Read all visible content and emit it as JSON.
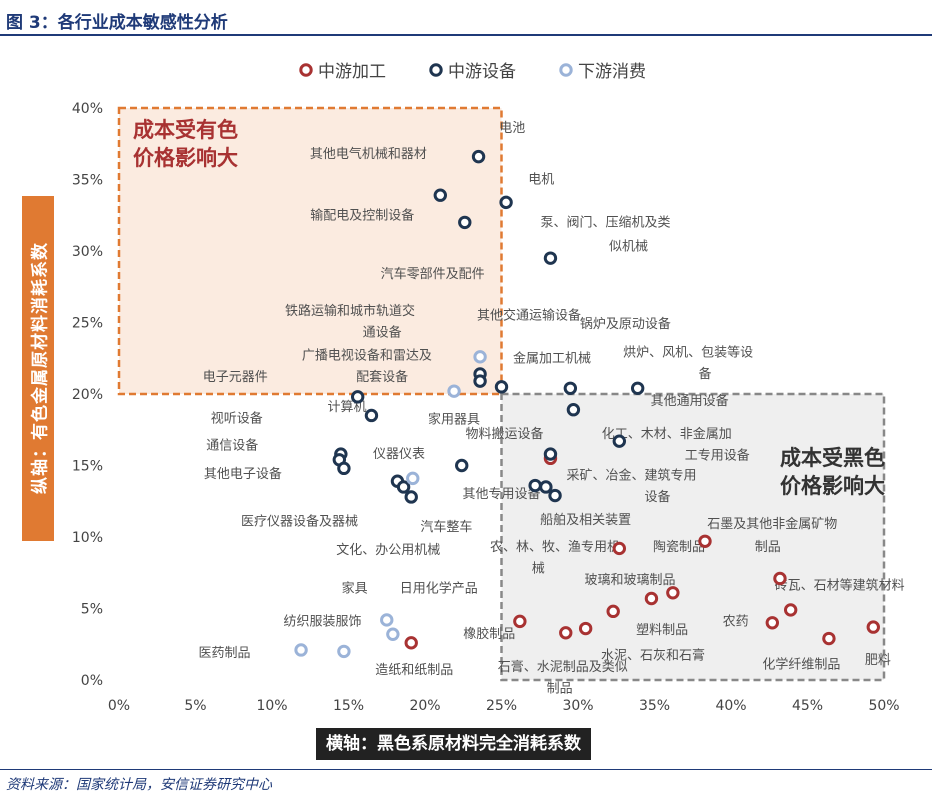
{
  "figure": {
    "title": "图 3：各行业成本敏感性分析",
    "source": "资料来源：国家统计局，安信证券研究中心"
  },
  "chart_data": {
    "type": "scatter",
    "xlabel": "横轴：黑色系原材料完全消耗系数",
    "ylabel": "纵轴：有色金属原材料消耗系数",
    "xlim": [
      0,
      0.5
    ],
    "ylim": [
      0,
      0.4
    ],
    "xticks": [
      "0%",
      "5%",
      "10%",
      "15%",
      "20%",
      "25%",
      "30%",
      "35%",
      "40%",
      "45%",
      "50%"
    ],
    "yticks": [
      "0%",
      "5%",
      "10%",
      "15%",
      "20%",
      "25%",
      "30%",
      "35%",
      "40%"
    ],
    "legend_position": "top",
    "colors": {
      "中游加工": "#a83232",
      "中游设备": "#1f3550",
      "下游消费": "#9bb3d8"
    },
    "regions": [
      {
        "label_lines": [
          "成本受有色",
          "价格影响大"
        ],
        "x": [
          0,
          0.25
        ],
        "y": [
          0.2,
          0.4
        ],
        "color": "#e07a32"
      },
      {
        "label_lines": [
          "成本受黑色",
          "价格影响大"
        ],
        "x": [
          0.25,
          0.5
        ],
        "y": [
          0,
          0.2
        ],
        "color": "#888888"
      }
    ],
    "series": [
      {
        "name": "中游加工",
        "points": [
          {
            "x": 0.282,
            "y": 0.155,
            "label": ""
          },
          {
            "x": 0.327,
            "y": 0.092,
            "label": ""
          },
          {
            "x": 0.383,
            "y": 0.097,
            "label": ""
          },
          {
            "x": 0.323,
            "y": 0.048,
            "label": ""
          },
          {
            "x": 0.348,
            "y": 0.057,
            "label": ""
          },
          {
            "x": 0.362,
            "y": 0.061,
            "label": ""
          },
          {
            "x": 0.262,
            "y": 0.041,
            "label": ""
          },
          {
            "x": 0.292,
            "y": 0.033,
            "label": ""
          },
          {
            "x": 0.305,
            "y": 0.036,
            "label": ""
          },
          {
            "x": 0.191,
            "y": 0.026,
            "label": ""
          },
          {
            "x": 0.432,
            "y": 0.071,
            "label": ""
          },
          {
            "x": 0.439,
            "y": 0.049,
            "label": ""
          },
          {
            "x": 0.427,
            "y": 0.04,
            "label": ""
          },
          {
            "x": 0.464,
            "y": 0.029,
            "label": ""
          },
          {
            "x": 0.493,
            "y": 0.037,
            "label": ""
          }
        ]
      },
      {
        "name": "中游设备",
        "points": [
          {
            "x": 0.235,
            "y": 0.366,
            "label": ""
          },
          {
            "x": 0.21,
            "y": 0.339,
            "label": ""
          },
          {
            "x": 0.226,
            "y": 0.32,
            "label": ""
          },
          {
            "x": 0.253,
            "y": 0.334,
            "label": ""
          },
          {
            "x": 0.282,
            "y": 0.295,
            "label": ""
          },
          {
            "x": 0.236,
            "y": 0.214,
            "label": ""
          },
          {
            "x": 0.236,
            "y": 0.209,
            "label": ""
          },
          {
            "x": 0.25,
            "y": 0.205,
            "label": ""
          },
          {
            "x": 0.295,
            "y": 0.204,
            "label": ""
          },
          {
            "x": 0.339,
            "y": 0.204,
            "label": ""
          },
          {
            "x": 0.156,
            "y": 0.198,
            "label": ""
          },
          {
            "x": 0.165,
            "y": 0.185,
            "label": ""
          },
          {
            "x": 0.297,
            "y": 0.189,
            "label": ""
          },
          {
            "x": 0.327,
            "y": 0.167,
            "label": ""
          },
          {
            "x": 0.282,
            "y": 0.158,
            "label": ""
          },
          {
            "x": 0.145,
            "y": 0.158,
            "label": ""
          },
          {
            "x": 0.144,
            "y": 0.154,
            "label": ""
          },
          {
            "x": 0.147,
            "y": 0.148,
            "label": ""
          },
          {
            "x": 0.224,
            "y": 0.15,
            "label": ""
          },
          {
            "x": 0.182,
            "y": 0.139,
            "label": ""
          },
          {
            "x": 0.186,
            "y": 0.135,
            "label": ""
          },
          {
            "x": 0.191,
            "y": 0.128,
            "label": ""
          },
          {
            "x": 0.272,
            "y": 0.136,
            "label": ""
          },
          {
            "x": 0.279,
            "y": 0.135,
            "label": ""
          },
          {
            "x": 0.285,
            "y": 0.129,
            "label": ""
          }
        ]
      },
      {
        "name": "下游消费",
        "points": [
          {
            "x": 0.236,
            "y": 0.226,
            "label": ""
          },
          {
            "x": 0.219,
            "y": 0.202,
            "label": ""
          },
          {
            "x": 0.192,
            "y": 0.141,
            "label": ""
          },
          {
            "x": 0.175,
            "y": 0.042,
            "label": ""
          },
          {
            "x": 0.179,
            "y": 0.032,
            "label": ""
          },
          {
            "x": 0.119,
            "y": 0.021,
            "label": ""
          },
          {
            "x": 0.147,
            "y": 0.02,
            "label": ""
          }
        ]
      }
    ],
    "annotations": [
      {
        "text": "电池",
        "x": 0.257,
        "y": 0.386
      },
      {
        "text": "其他电气机械和器材",
        "x": 0.163,
        "y": 0.368
      },
      {
        "text": "电机",
        "x": 0.276,
        "y": 0.35
      },
      {
        "text": "输配电及控制设备",
        "x": 0.159,
        "y": 0.325
      },
      {
        "text": "泵、阀门、压缩机及类",
        "x": 0.318,
        "y": 0.32
      },
      {
        "text": "似机械",
        "x": 0.333,
        "y": 0.303
      },
      {
        "text": "汽车零部件及配件",
        "x": 0.205,
        "y": 0.284
      },
      {
        "text": "铁路运输和城市轨道交",
        "x": 0.151,
        "y": 0.258
      },
      {
        "text": "通设备",
        "x": 0.172,
        "y": 0.243
      },
      {
        "text": "其他交通运输设备",
        "x": 0.268,
        "y": 0.255
      },
      {
        "text": "锅炉及原动设备",
        "x": 0.331,
        "y": 0.249
      },
      {
        "text": "广播电视设备和雷达及",
        "x": 0.162,
        "y": 0.227
      },
      {
        "text": "配套设备",
        "x": 0.172,
        "y": 0.212
      },
      {
        "text": "金属加工机械",
        "x": 0.283,
        "y": 0.225
      },
      {
        "text": "烘炉、风机、包装等设",
        "x": 0.372,
        "y": 0.229
      },
      {
        "text": "备",
        "x": 0.383,
        "y": 0.214
      },
      {
        "text": "电子元器件",
        "x": 0.076,
        "y": 0.212
      },
      {
        "text": "计算机",
        "x": 0.149,
        "y": 0.191
      },
      {
        "text": "家用器具",
        "x": 0.219,
        "y": 0.182
      },
      {
        "text": "其他通用设备",
        "x": 0.373,
        "y": 0.195
      },
      {
        "text": "视听设备",
        "x": 0.077,
        "y": 0.183
      },
      {
        "text": "物料搬运设备",
        "x": 0.252,
        "y": 0.172
      },
      {
        "text": "化工、木材、非金属加",
        "x": 0.358,
        "y": 0.172
      },
      {
        "text": "通信设备",
        "x": 0.074,
        "y": 0.164
      },
      {
        "text": "仪器仪表",
        "x": 0.183,
        "y": 0.158
      },
      {
        "text": "工专用设备",
        "x": 0.391,
        "y": 0.157
      },
      {
        "text": "其他电子设备",
        "x": 0.081,
        "y": 0.144
      },
      {
        "text": "采矿、冶金、建筑专用",
        "x": 0.335,
        "y": 0.143
      },
      {
        "text": "其他专用设备",
        "x": 0.25,
        "y": 0.13
      },
      {
        "text": "设备",
        "x": 0.352,
        "y": 0.128
      },
      {
        "text": "医疗仪器设备及器械",
        "x": 0.118,
        "y": 0.111
      },
      {
        "text": "船舶及相关装置",
        "x": 0.305,
        "y": 0.112
      },
      {
        "text": "汽车整车",
        "x": 0.214,
        "y": 0.107
      },
      {
        "text": "石墨及其他非金属矿物",
        "x": 0.427,
        "y": 0.109
      },
      {
        "text": "制品",
        "x": 0.424,
        "y": 0.093
      },
      {
        "text": "农、林、牧、渔专用机",
        "x": 0.285,
        "y": 0.093
      },
      {
        "text": "械",
        "x": 0.274,
        "y": 0.078
      },
      {
        "text": "陶瓷制品",
        "x": 0.366,
        "y": 0.093
      },
      {
        "text": "文化、办公用机械",
        "x": 0.176,
        "y": 0.091
      },
      {
        "text": "玻璃和玻璃制品",
        "x": 0.334,
        "y": 0.07
      },
      {
        "text": "砖瓦、石材等建筑材料",
        "x": 0.471,
        "y": 0.066
      },
      {
        "text": "家具",
        "x": 0.154,
        "y": 0.064
      },
      {
        "text": "日用化学产品",
        "x": 0.209,
        "y": 0.064
      },
      {
        "text": "纺织服装服饰",
        "x": 0.133,
        "y": 0.041
      },
      {
        "text": "农药",
        "x": 0.403,
        "y": 0.041
      },
      {
        "text": "塑料制品",
        "x": 0.355,
        "y": 0.035
      },
      {
        "text": "橡胶制品",
        "x": 0.242,
        "y": 0.032
      },
      {
        "text": "医药制品",
        "x": 0.069,
        "y": 0.019
      },
      {
        "text": "水泥、石灰和石膏",
        "x": 0.349,
        "y": 0.017
      },
      {
        "text": "肥料",
        "x": 0.496,
        "y": 0.014
      },
      {
        "text": "化学纤维制品",
        "x": 0.446,
        "y": 0.011
      },
      {
        "text": "造纸和纸制品",
        "x": 0.193,
        "y": 0.007
      },
      {
        "text": "石膏、水泥制品及类似",
        "x": 0.29,
        "y": 0.009
      },
      {
        "text": "制品",
        "x": 0.288,
        "y": -0.006
      }
    ]
  }
}
